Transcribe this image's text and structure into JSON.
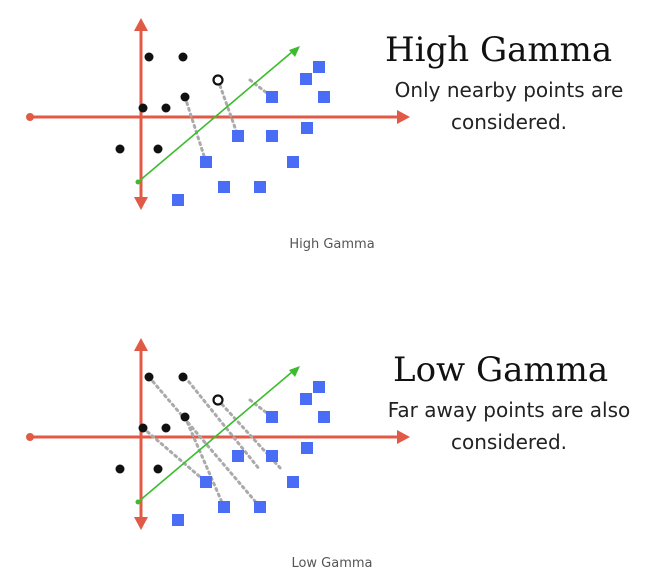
{
  "colors": {
    "axis": "#e05a46",
    "boundary": "#3dbb2e",
    "point_dark": "#111111",
    "point_blue": "#4a6df5",
    "dotted": "#aaaaaa"
  },
  "panels": [
    {
      "title": "High Gamma",
      "description_line1": "Only nearby points are",
      "description_line2": "considered.",
      "caption": "High Gamma"
    },
    {
      "title": "Low Gamma",
      "description_line1": "Far away points are also",
      "description_line2": "considered.",
      "caption": "Low Gamma"
    }
  ]
}
